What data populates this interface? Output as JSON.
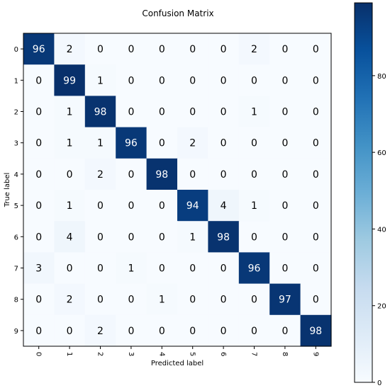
{
  "chart_data": {
    "type": "heatmap",
    "title": "Confusion Matrix",
    "xlabel": "Predicted label",
    "ylabel": "True label",
    "x_ticks": [
      "0",
      "1",
      "2",
      "3",
      "4",
      "5",
      "6",
      "7",
      "8",
      "9"
    ],
    "y_ticks": [
      "0",
      "1",
      "2",
      "3",
      "4",
      "5",
      "6",
      "7",
      "8",
      "9"
    ],
    "matrix": [
      [
        96,
        2,
        0,
        0,
        0,
        0,
        0,
        2,
        0,
        0
      ],
      [
        0,
        99,
        1,
        0,
        0,
        0,
        0,
        0,
        0,
        0
      ],
      [
        0,
        1,
        98,
        0,
        0,
        0,
        0,
        1,
        0,
        0
      ],
      [
        0,
        1,
        1,
        96,
        0,
        2,
        0,
        0,
        0,
        0
      ],
      [
        0,
        0,
        2,
        0,
        98,
        0,
        0,
        0,
        0,
        0
      ],
      [
        0,
        1,
        0,
        0,
        0,
        94,
        4,
        1,
        0,
        0
      ],
      [
        0,
        4,
        0,
        0,
        0,
        1,
        98,
        0,
        0,
        0
      ],
      [
        3,
        0,
        0,
        1,
        0,
        0,
        0,
        96,
        0,
        0
      ],
      [
        0,
        2,
        0,
        0,
        1,
        0,
        0,
        0,
        97,
        0
      ],
      [
        0,
        0,
        2,
        0,
        0,
        0,
        0,
        0,
        0,
        98
      ]
    ],
    "colorbar": {
      "ticks": [
        "0",
        "20",
        "40",
        "60",
        "80"
      ],
      "tick_values": [
        0,
        20,
        40,
        60,
        80
      ],
      "range": [
        0,
        99
      ],
      "colormap": "Blues"
    },
    "colors": {
      "low": "#f7fbff",
      "high": "#08306b",
      "dark_text": "#000000",
      "light_text": "#ffffff"
    },
    "grid": false,
    "legend": "colorbar-right"
  }
}
